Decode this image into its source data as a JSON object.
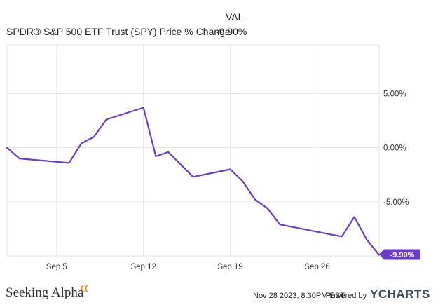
{
  "header": {
    "metric_column": "VAL",
    "series_label": "SPDR® S&P 500 ETF Trust (SPY) Price % Change",
    "series_value": "-9.90%"
  },
  "colors": {
    "series": "#6a3bd0",
    "grid": "#e6e6e6",
    "badge": "#6a3bd0",
    "alpha_orange": "#f58220"
  },
  "chart_data": {
    "type": "line",
    "title": "",
    "xlabel": "",
    "ylabel": "",
    "ylim": [
      -10.0,
      9.5
    ],
    "yticks": [
      5,
      0,
      -5
    ],
    "ytick_labels": [
      "5.00%",
      "0.00%",
      "-5.00%"
    ],
    "xticks": [
      "2023-09-05",
      "2023-09-12",
      "2023-09-19",
      "2023-09-26"
    ],
    "xtick_labels": [
      "Sep 5",
      "Sep 12",
      "Sep 19",
      "Sep 26"
    ],
    "grid": true,
    "series": [
      {
        "name": "SPDR® S&P 500 ETF Trust (SPY) Price % Change",
        "points": [
          [
            "2023-09-01",
            0.0
          ],
          [
            "2023-09-02",
            -1.0
          ],
          [
            "2023-09-06",
            -1.4
          ],
          [
            "2023-09-07",
            0.4
          ],
          [
            "2023-09-08",
            1.0
          ],
          [
            "2023-09-09",
            2.6
          ],
          [
            "2023-09-12",
            3.7
          ],
          [
            "2023-09-13",
            -0.8
          ],
          [
            "2023-09-14",
            -0.4
          ],
          [
            "2023-09-16",
            -2.7
          ],
          [
            "2023-09-19",
            -2.0
          ],
          [
            "2023-09-20",
            -3.1
          ],
          [
            "2023-09-21",
            -4.8
          ],
          [
            "2023-09-22",
            -5.6
          ],
          [
            "2023-09-23",
            -7.1
          ],
          [
            "2023-09-27",
            -8.0
          ],
          [
            "2023-09-28",
            -8.2
          ],
          [
            "2023-09-29",
            -6.4
          ],
          [
            "2023-09-30",
            -8.5
          ],
          [
            "2023-10-01",
            -9.9
          ]
        ]
      }
    ],
    "end_label": "-9.90%"
  },
  "footer": {
    "brand_left": "Seeking Alpha",
    "brand_alpha": "α",
    "timestamp": "Nov 28 2023, 8:30PM EST.",
    "powered_by": "Powered by",
    "brand_right": "YCHARTS"
  }
}
